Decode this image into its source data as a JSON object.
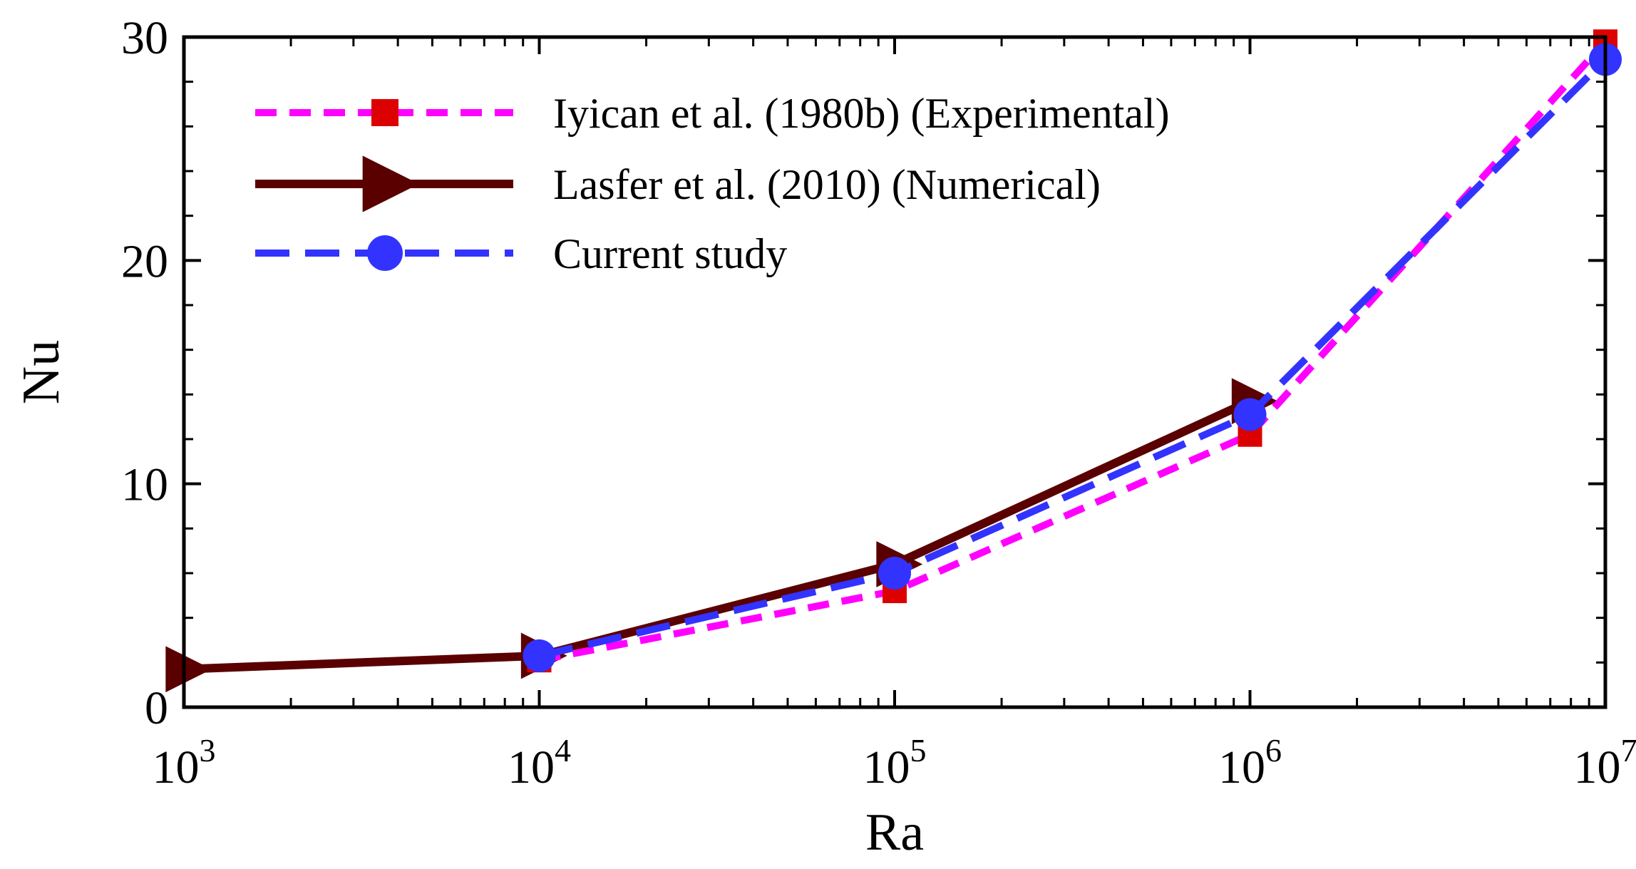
{
  "chart_data": {
    "type": "line",
    "xlabel": "Ra",
    "ylabel": "Nu",
    "xscale": "log",
    "xlim": [
      1000,
      10000000
    ],
    "ylim": [
      0,
      30
    ],
    "x_tick_labels": [
      {
        "base": "10",
        "exp": "3"
      },
      {
        "base": "10",
        "exp": "4"
      },
      {
        "base": "10",
        "exp": "5"
      },
      {
        "base": "10",
        "exp": "6"
      },
      {
        "base": "10",
        "exp": "7"
      }
    ],
    "y_tick_labels": [
      "0",
      "10",
      "20",
      "30"
    ],
    "legend_position": "top-left",
    "series": [
      {
        "name": "Iyican et al. (1980b) (Experimental)",
        "line_color": "#ff00ff",
        "marker_color": "#dd0000",
        "marker": "square",
        "line_style": "dashed",
        "x": [
          10000,
          100000,
          1000000,
          10000000
        ],
        "y": [
          2.1,
          5.2,
          12.2,
          29.8
        ]
      },
      {
        "name": "Lasfer et al. (2010) (Numerical)",
        "line_color": "#5a0000",
        "marker_color": "#5a0000",
        "marker": "triangle-right",
        "line_style": "solid",
        "x": [
          1000,
          10000,
          100000,
          1000000
        ],
        "y": [
          1.7,
          2.3,
          6.4,
          13.7
        ]
      },
      {
        "name": "Current study",
        "line_color": "#3333ff",
        "marker_color": "#3333ff",
        "marker": "circle",
        "line_style": "long-dashed",
        "x": [
          10000,
          100000,
          1000000,
          10000000
        ],
        "y": [
          2.3,
          6.0,
          13.1,
          29.0
        ]
      }
    ]
  }
}
